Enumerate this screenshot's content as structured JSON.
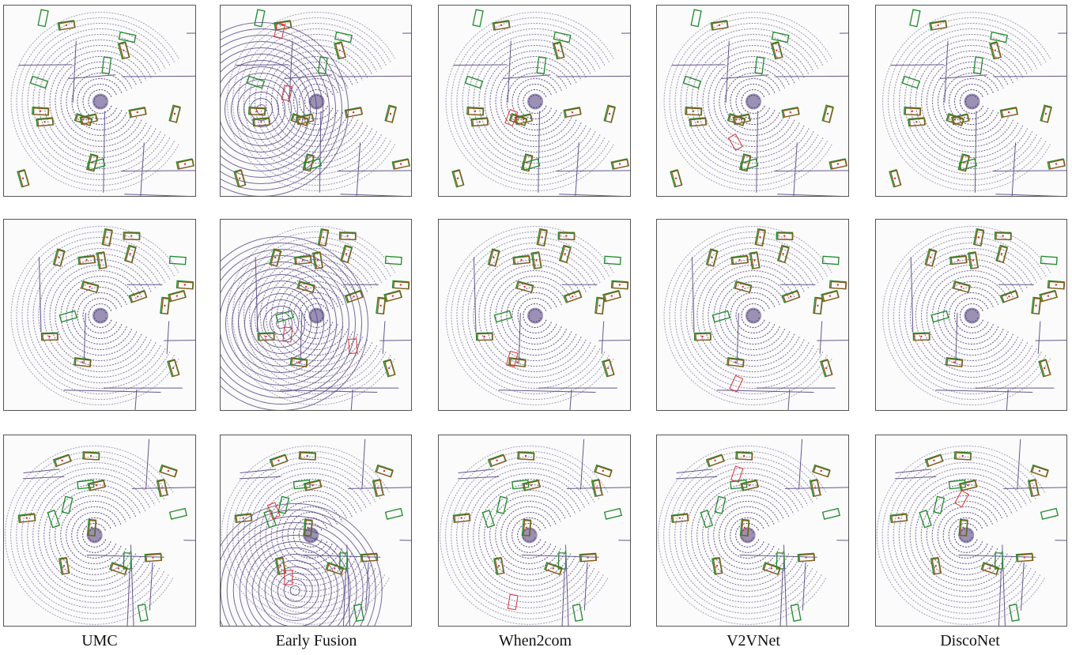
{
  "figure": {
    "columns": [
      {
        "label": "UMC"
      },
      {
        "label": "Early Fusion"
      },
      {
        "label": "When2com"
      },
      {
        "label": "V2VNet"
      },
      {
        "label": "DiscoNet"
      }
    ],
    "rows": 3,
    "colors": {
      "point_cloud": "#4b3b7a",
      "ground_truth": "#1e8a2a",
      "prediction": "#8b5a1a",
      "false_positive": "#e03030",
      "panel_border": "#555555",
      "panel_bg": "#fbfbfb"
    }
  }
}
